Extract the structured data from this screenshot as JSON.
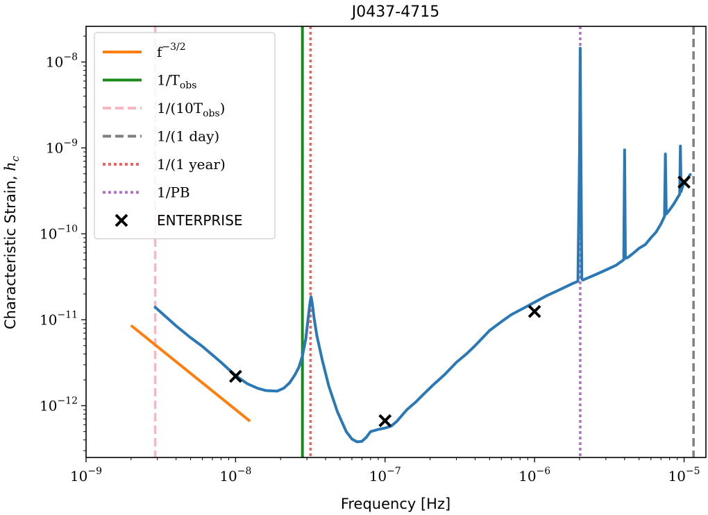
{
  "chart_data": {
    "type": "line",
    "title": "J0437-4715",
    "xlabel": "Frequency [Hz]",
    "ylabel": "Characteristic Strain, h_c",
    "ylabel_main": "Characteristic Strain, ",
    "ylabel_sym": "h",
    "ylabel_sub": "c",
    "xscale": "log",
    "yscale": "log",
    "xlim": [
      1e-09,
      1.4e-05
    ],
    "ylim": [
      2.5e-13,
      2.6e-08
    ],
    "grid": false,
    "legend_position": "upper-left",
    "x_ticks": [
      {
        "value": 1e-09,
        "exp": "−9"
      },
      {
        "value": 1e-08,
        "exp": "−8"
      },
      {
        "value": 1e-07,
        "exp": "−7"
      },
      {
        "value": 1e-06,
        "exp": "−6"
      },
      {
        "value": 1e-05,
        "exp": "−5"
      }
    ],
    "y_ticks": [
      {
        "value": 1e-12,
        "exp": "−12"
      },
      {
        "value": 1e-11,
        "exp": "−11"
      },
      {
        "value": 1e-10,
        "exp": "−10"
      },
      {
        "value": 1e-09,
        "exp": "−9"
      },
      {
        "value": 1e-08,
        "exp": "−8"
      }
    ],
    "tick_base": "10",
    "colors": {
      "curve": "#2a78b5",
      "powerlaw": "#ff7f0e",
      "tobs": "#1a8a1a",
      "tobs10": "#f7b6c2",
      "day": "#7f7f7f",
      "year": "#f0605d",
      "pb": "#b06fc4",
      "enterprise": "#000000"
    },
    "vlines": [
      {
        "key": "tobs10",
        "x": 2.9e-09,
        "style": "dashed"
      },
      {
        "key": "tobs",
        "x": 2.8e-08,
        "style": "solid"
      },
      {
        "key": "year",
        "x": 3.17e-08,
        "style": "dotted"
      },
      {
        "key": "pb",
        "x": 2.02e-06,
        "style": "dotted"
      },
      {
        "key": "day",
        "x": 1.157e-05,
        "style": "dashed"
      }
    ],
    "powerlaw_line": {
      "x": [
        2e-09,
        1.25e-08
      ],
      "y": [
        8.6e-12,
        6.6e-13
      ]
    },
    "strain_curve": {
      "x": [
        2.9e-09,
        4e-09,
        5e-09,
        6e-09,
        7e-09,
        8e-09,
        9e-09,
        1e-08,
        1.2e-08,
        1.4e-08,
        1.6e-08,
        1.9e-08,
        2.1e-08,
        2.3e-08,
        2.5e-08,
        2.65e-08,
        2.8e-08,
        2.95e-08,
        3.05e-08,
        3.15e-08,
        3.2e-08,
        3.25e-08,
        3.35e-08,
        3.5e-08,
        3.8e-08,
        4.2e-08,
        4.8e-08,
        5.5e-08,
        6e-08,
        6.5e-08,
        7e-08,
        7.5e-08,
        8e-08,
        9e-08,
        1e-07,
        1.1e-07,
        1.2e-07,
        1.4e-07,
        1.6e-07,
        1.8e-07,
        2.1e-07,
        2.5e-07,
        3e-07,
        3.5e-07,
        4e-07,
        4.5e-07,
        5e-07,
        6e-07,
        7e-07,
        8e-07,
        9e-07,
        1e-06,
        1.2e-06,
        1.4e-06,
        1.6e-06,
        1.8e-06,
        1.95e-06,
        2e-06,
        2.02e-06,
        2.04e-06,
        2.07e-06,
        2.1e-06,
        2.3e-06,
        2.6e-06,
        3e-06,
        3.5e-06,
        3.95e-06,
        4e-06,
        4.05e-06,
        4.2e-06,
        4.6e-06,
        5e-06,
        5.5e-06,
        6e-06,
        6.5e-06,
        7e-06,
        7.4e-06,
        7.5e-06,
        7.6e-06,
        8e-06,
        8.5e-06,
        9e-06,
        9.35e-06,
        9.45e-06,
        9.55e-06,
        9.8e-06,
        1e-05,
        1.05e-05,
        1.1e-05
      ],
      "y": [
        1.4e-11,
        8.5e-12,
        6.2e-12,
        4.9e-12,
        3.9e-12,
        3.2e-12,
        2.65e-12,
        2.25e-12,
        1.8e-12,
        1.6e-12,
        1.5e-12,
        1.48e-12,
        1.6e-12,
        1.85e-12,
        2.3e-12,
        2.8e-12,
        3.8e-12,
        6e-12,
        1e-11,
        1.6e-11,
        1.85e-11,
        1.6e-11,
        1.05e-11,
        6.5e-12,
        3.4e-12,
        1.7e-12,
        8.5e-13,
        5e-13,
        4.1e-13,
        3.8e-13,
        3.85e-13,
        4.3e-13,
        5e-13,
        5.3e-13,
        5.5e-13,
        5.8e-13,
        6.6e-13,
        9e-13,
        1.1e-12,
        1.35e-12,
        1.75e-12,
        2.3e-12,
        3.2e-12,
        4e-12,
        5e-12,
        6.2e-12,
        7.5e-12,
        9.5e-12,
        1.15e-11,
        1.3e-11,
        1.45e-11,
        1.6e-11,
        1.9e-11,
        2.15e-11,
        2.4e-11,
        2.65e-11,
        2.8e-11,
        1e-09,
        1.45e-08,
        1e-09,
        3e-11,
        2.9e-11,
        3.1e-11,
        3.4e-11,
        3.8e-11,
        4.3e-11,
        5e-11,
        9.5e-10,
        5.2e-11,
        5.3e-11,
        6e-11,
        6.8e-11,
        7.5e-11,
        9e-11,
        1.05e-10,
        1.3e-10,
        1.6e-10,
        8.5e-10,
        1.7e-10,
        1.9e-10,
        2.2e-10,
        2.6e-10,
        2.9e-10,
        1.05e-09,
        3.1e-10,
        3.6e-10,
        3.9e-10,
        4.3e-10,
        4.9e-10
      ]
    },
    "enterprise_points": {
      "x": [
        1e-08,
        1e-07,
        1e-06,
        1e-05
      ],
      "y": [
        2.2e-12,
        6.7e-13,
        1.25e-11,
        4e-10
      ]
    },
    "legend": [
      {
        "key": "powerlaw",
        "style": "solid",
        "marker": "",
        "label_main": "f",
        "label_sup": "−3/2",
        "label_sub": "",
        "label_tail": ""
      },
      {
        "key": "tobs",
        "style": "solid",
        "marker": "",
        "label_main": "1/T",
        "label_sup": "",
        "label_sub": "obs",
        "label_tail": ""
      },
      {
        "key": "tobs10",
        "style": "dashed",
        "marker": "",
        "label_main": "1/(10T",
        "label_sup": "",
        "label_sub": "obs",
        "label_tail": ")"
      },
      {
        "key": "day",
        "style": "dashed",
        "marker": "",
        "label_main": "1/(1 day)",
        "label_sup": "",
        "label_sub": "",
        "label_tail": ""
      },
      {
        "key": "year",
        "style": "dotted",
        "marker": "",
        "label_main": "1/(1 year)",
        "label_sup": "",
        "label_sub": "",
        "label_tail": ""
      },
      {
        "key": "pb",
        "style": "dotted",
        "marker": "",
        "label_main": "1/PB",
        "label_sup": "",
        "label_sub": "",
        "label_tail": ""
      },
      {
        "key": "enterprise",
        "style": "none",
        "marker": "x",
        "label_main": "ENTERPRISE",
        "label_sup": "",
        "label_sub": "",
        "label_tail": ""
      }
    ]
  }
}
